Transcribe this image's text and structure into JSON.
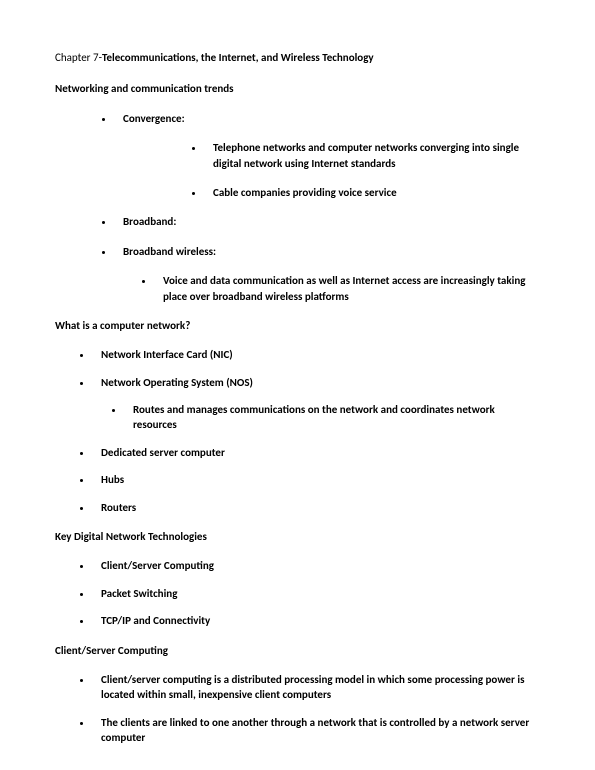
{
  "title_prefix": "Chapter 7-",
  "title_main": "Telecommunications, the Internet, and Wireless Technology",
  "section1": {
    "heading": "Networking and communication trends",
    "item1": "Convergence:",
    "item1_sub1": "Telephone networks and computer networks converging into single digital network using Internet standards",
    "item1_sub2": "Cable companies providing voice service",
    "item2": "Broadband:",
    "item3": "Broadband wireless:",
    "item3_sub1": "Voice and data communication as well as Internet access are increasingly taking place over broadband wireless platforms"
  },
  "section2": {
    "heading": "What is a computer network?",
    "item1": "Network Interface Card (NIC)",
    "item2": "Network Operating System (NOS)",
    "item2_sub1": "Routes and manages communications on the network and coordinates network resources",
    "item3": "Dedicated server computer",
    "item4": "Hubs",
    "item5": "Routers"
  },
  "section3": {
    "heading": "Key Digital Network Technologies",
    "item1": "Client/Server Computing",
    "item2": "Packet Switching",
    "item3": "TCP/IP and Connectivity"
  },
  "section4": {
    "heading": "Client/Server Computing",
    "item1": "Client/server computing is a distributed processing model in which some processing power is located within small, inexpensive client computers",
    "item2": "The clients are linked to one another through a network that is controlled by a network server computer"
  }
}
